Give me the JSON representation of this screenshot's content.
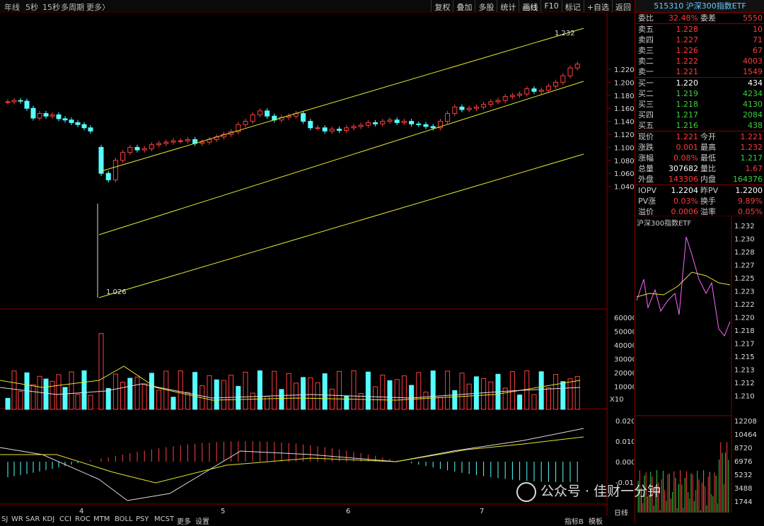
{
  "periods": [
    "年线",
    "5秒",
    "15秒",
    "多周期",
    "更多〉"
  ],
  "tools": [
    "复权",
    "叠加",
    "多股",
    "统计",
    "画线",
    "F10",
    "标记",
    "+自选",
    "返回"
  ],
  "active_tool": "画线",
  "price_axis": [
    "1.220",
    "1.200",
    "1.180",
    "1.160",
    "1.140",
    "1.120",
    "1.100",
    "1.080",
    "1.060",
    "1.040"
  ],
  "price_ann": {
    "high": "1.232",
    "low": "1.026"
  },
  "vol_axis": [
    "60000",
    "50000",
    "40000",
    "30000",
    "20000",
    "10000"
  ],
  "vol_unit": "X10",
  "macd_axis": [
    "0.020",
    "0.010",
    "0.000",
    "-0.010"
  ],
  "dates": [
    "4",
    "5",
    "6",
    "7"
  ],
  "indicator_tabs": [
    "SJ",
    "WR",
    "SAR",
    "KDJ",
    "CCI",
    "ROC",
    "MTM",
    "BOLL",
    "PSY",
    "MCST",
    "更多",
    "设置"
  ],
  "bottom_right": [
    "指标B",
    "模板"
  ],
  "side": {
    "header": "515310 沪深300指数ETF",
    "weibi": {
      "label": "委比",
      "value": "32.48%",
      "label2": "委差",
      "value2": "5550"
    },
    "asks": [
      {
        "label": "卖五",
        "price": "1.228",
        "vol": "10"
      },
      {
        "label": "卖四",
        "price": "1.227",
        "vol": "71"
      },
      {
        "label": "卖三",
        "price": "1.226",
        "vol": "67"
      },
      {
        "label": "卖二",
        "price": "1.222",
        "vol": "4003"
      },
      {
        "label": "卖一",
        "price": "1.221",
        "vol": "1549"
      }
    ],
    "bids": [
      {
        "label": "买一",
        "price": "1.220",
        "vol": "434",
        "color": "white"
      },
      {
        "label": "买二",
        "price": "1.219",
        "vol": "4234",
        "color": "green"
      },
      {
        "label": "买三",
        "price": "1.218",
        "vol": "4130",
        "color": "green"
      },
      {
        "label": "买四",
        "price": "1.217",
        "vol": "2084",
        "color": "green"
      },
      {
        "label": "买五",
        "price": "1.216",
        "vol": "438",
        "color": "green"
      }
    ],
    "stats": [
      {
        "l": "现价",
        "v": "1.221",
        "c1": "red",
        "l2": "今开",
        "v2": "1.221",
        "c2": "red"
      },
      {
        "l": "涨跌",
        "v": "0.001",
        "c1": "red",
        "l2": "最高",
        "v2": "1.232",
        "c2": "red"
      },
      {
        "l": "涨幅",
        "v": "0.08%",
        "c1": "red",
        "l2": "最低",
        "v2": "1.217",
        "c2": "green"
      },
      {
        "l": "总量",
        "v": "307682",
        "c1": "white",
        "l2": "量比",
        "v2": "1.67",
        "c2": "red"
      },
      {
        "l": "外盘",
        "v": "143306",
        "c1": "red",
        "l2": "内盘",
        "v2": "164376",
        "c2": "green"
      }
    ],
    "iopv": [
      {
        "l": "IOPV",
        "v": "1.2204",
        "c1": "white",
        "l2": "昨PV",
        "v2": "1.2200",
        "c2": "white"
      },
      {
        "l": "PV涨",
        "v": "0.03%",
        "c1": "red",
        "l2": "换手",
        "v2": "9.89%",
        "c2": "red"
      },
      {
        "l": "溢价",
        "v": "0.0006",
        "c1": "red",
        "l2": "溢率",
        "v2": "0.05%",
        "c2": "red"
      }
    ],
    "mini_title": "沪深300指数ETF",
    "mini_axis": [
      "1.232",
      "1.230",
      "1.228",
      "1.227",
      "1.225",
      "1.223",
      "1.222",
      "1.220",
      "1.218",
      "1.217",
      "1.215",
      "1.213",
      "1.212",
      "1.210"
    ],
    "mini_vol_axis": [
      "12208",
      "10464",
      "8720",
      "6976",
      "5232",
      "3488",
      "1744"
    ],
    "day_tag": "日线"
  },
  "watermark": "公众号 · 佳财一分钟"
}
